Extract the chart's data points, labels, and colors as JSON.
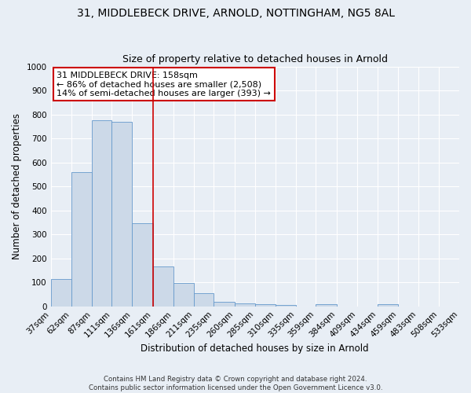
{
  "title": "31, MIDDLEBECK DRIVE, ARNOLD, NOTTINGHAM, NG5 8AL",
  "subtitle": "Size of property relative to detached houses in Arnold",
  "xlabel": "Distribution of detached houses by size in Arnold",
  "ylabel": "Number of detached properties",
  "bar_heights": [
    115,
    560,
    775,
    770,
    345,
    165,
    97,
    55,
    20,
    12,
    8,
    5,
    0,
    10,
    0,
    0,
    10,
    0,
    0,
    0
  ],
  "bin_labels": [
    "37sqm",
    "62sqm",
    "87sqm",
    "111sqm",
    "136sqm",
    "161sqm",
    "186sqm",
    "211sqm",
    "235sqm",
    "260sqm",
    "285sqm",
    "310sqm",
    "335sqm",
    "359sqm",
    "384sqm",
    "409sqm",
    "434sqm",
    "459sqm",
    "483sqm",
    "508sqm",
    "533sqm"
  ],
  "bin_edges": [
    37,
    62,
    87,
    111,
    136,
    161,
    186,
    211,
    235,
    260,
    285,
    310,
    335,
    359,
    384,
    409,
    434,
    459,
    483,
    508,
    533
  ],
  "bar_color": "#ccd9e8",
  "bar_edge_color": "#6699cc",
  "background_color": "#e8eef5",
  "grid_color": "#ffffff",
  "vline_x": 161,
  "vline_color": "#cc0000",
  "ylim": [
    0,
    1000
  ],
  "yticks": [
    0,
    100,
    200,
    300,
    400,
    500,
    600,
    700,
    800,
    900,
    1000
  ],
  "annotation_title": "31 MIDDLEBECK DRIVE: 158sqm",
  "annotation_line1": "← 86% of detached houses are smaller (2,508)",
  "annotation_line2": "14% of semi-detached houses are larger (393) →",
  "annotation_box_color": "#cc0000",
  "footer_line1": "Contains HM Land Registry data © Crown copyright and database right 2024.",
  "footer_line2": "Contains public sector information licensed under the Open Government Licence v3.0.",
  "title_fontsize": 10,
  "subtitle_fontsize": 9,
  "axis_label_fontsize": 8.5,
  "tick_fontsize": 7.5,
  "annot_fontsize": 8
}
